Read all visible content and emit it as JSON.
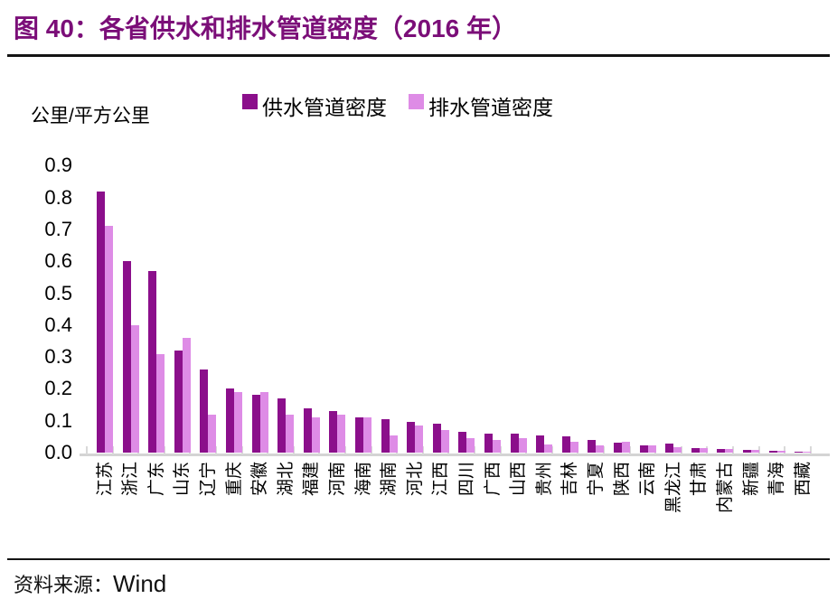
{
  "title": "图 40：各省供水和排水管道密度（2016 年）",
  "source": {
    "label": "资料来源：",
    "value": "Wind"
  },
  "colors": {
    "title": "#7b0e78",
    "supply_series": "#8b0f8b",
    "drainage_series": "#de8ce6",
    "axis": "#d4d4d4",
    "text": "#000000"
  },
  "chart_data": {
    "type": "bar",
    "title": "各省供水和排水管道密度（2016 年）",
    "unit_label": "公里/平方公里",
    "xlabel": "",
    "ylabel": "公里/平方公里",
    "ylim": [
      0,
      0.9
    ],
    "ytick_step": 0.1,
    "grid": false,
    "legend_position": "top",
    "categories": [
      "江苏",
      "浙江",
      "广东",
      "山东",
      "辽宁",
      "重庆",
      "安徽",
      "湖北",
      "福建",
      "河南",
      "海南",
      "湖南",
      "河北",
      "江西",
      "四川",
      "广西",
      "山西",
      "贵州",
      "吉林",
      "宁夏",
      "陕西",
      "云南",
      "黑龙江",
      "甘肃",
      "内蒙古",
      "新疆",
      "青海",
      "西藏"
    ],
    "series": [
      {
        "name": "供水管道密度",
        "color": "#8b0f8b",
        "values": [
          0.82,
          0.6,
          0.57,
          0.32,
          0.26,
          0.2,
          0.18,
          0.17,
          0.14,
          0.13,
          0.11,
          0.105,
          0.095,
          0.09,
          0.065,
          0.06,
          0.06,
          0.055,
          0.05,
          0.04,
          0.032,
          0.024,
          0.027,
          0.014,
          0.011,
          0.008,
          0.005,
          0.003
        ]
      },
      {
        "name": "排水管道密度",
        "color": "#de8ce6",
        "values": [
          0.71,
          0.4,
          0.31,
          0.36,
          0.12,
          0.19,
          0.19,
          0.12,
          0.11,
          0.12,
          0.11,
          0.055,
          0.085,
          0.07,
          0.045,
          0.04,
          0.045,
          0.025,
          0.035,
          0.022,
          0.035,
          0.023,
          0.018,
          0.014,
          0.011,
          0.009,
          0.005,
          0.002
        ]
      }
    ]
  }
}
